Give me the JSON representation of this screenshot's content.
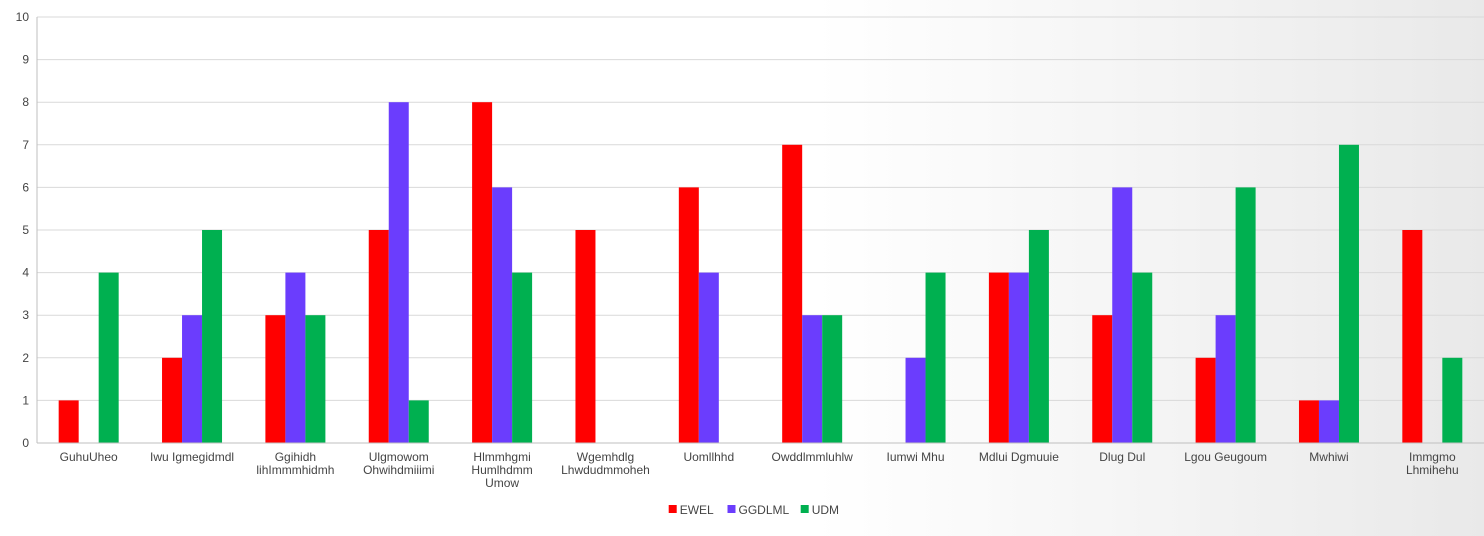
{
  "chart_data": {
    "type": "bar",
    "title": "",
    "xlabel": "",
    "ylabel": "",
    "ylim": [
      0,
      10
    ],
    "yticks": [
      0,
      1,
      2,
      3,
      4,
      5,
      6,
      7,
      8,
      9,
      10
    ],
    "grid": true,
    "legend_position": "bottom-center",
    "categories": [
      [
        "GuhuUheo"
      ],
      [
        "Iwu Igmegidmdl"
      ],
      [
        "Ggihidh",
        "lihImmmhidmh"
      ],
      [
        "Ulgmowom",
        "Ohwihdmiiimi"
      ],
      [
        "Hlmmhgmi",
        "Humlhdmm",
        "Umow"
      ],
      [
        "Wgemhdlg",
        "Lhwdudmmoheh"
      ],
      [
        "Uomllhhd"
      ],
      [
        "Owddlmmluhlw"
      ],
      [
        "Iumwi Mhu"
      ],
      [
        "Mdlui Dgmuuie"
      ],
      [
        "Dlug Dul"
      ],
      [
        "Lgou Geugoum"
      ],
      [
        "Mwhiwi"
      ],
      [
        "Immgmo",
        "Lhmihehu"
      ]
    ],
    "series": [
      {
        "name": "EWEL",
        "color": "#ff0000",
        "values": [
          1,
          2,
          3,
          5,
          8,
          5,
          6,
          7,
          0,
          4,
          3,
          2,
          1,
          5
        ]
      },
      {
        "name": "GGDLML",
        "color": "#6b3dfd",
        "values": [
          0,
          3,
          4,
          8,
          6,
          0,
          4,
          3,
          2,
          4,
          6,
          3,
          1,
          0
        ]
      },
      {
        "name": "UDM",
        "color": "#00b050",
        "values": [
          4,
          5,
          3,
          1,
          4,
          0,
          0,
          3,
          4,
          5,
          4,
          6,
          7,
          2
        ]
      }
    ]
  }
}
